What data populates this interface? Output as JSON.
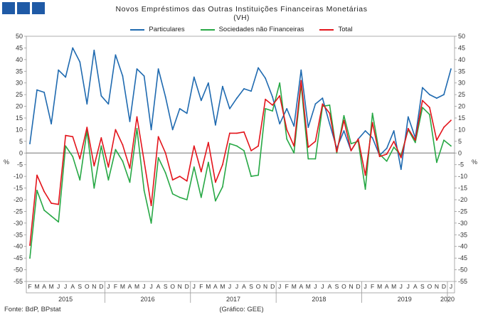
{
  "header": {
    "title": "Novos Empréstimos das Outras Instituições Financeiras Monetárias",
    "subtitle": "(VH)"
  },
  "footer": {
    "source": "Fonte: BdP, BPstat",
    "credit": "(Gráfico: GEE)"
  },
  "colors": {
    "particulares": "#1f6ab0",
    "sociedades": "#27a845",
    "total": "#e3141b",
    "logo": "#1f5aa6"
  },
  "chart_data": {
    "type": "line",
    "ylim": [
      -55,
      50
    ],
    "yticks": [
      50,
      45,
      40,
      35,
      30,
      25,
      20,
      15,
      10,
      5,
      0,
      -5,
      -10,
      -15,
      -20,
      -25,
      -30,
      -35,
      -40,
      -45,
      -50,
      -55
    ],
    "ylabel_left": "%",
    "ylabel_right": "%",
    "month_labels": [
      "F",
      "M",
      "A",
      "M",
      "J",
      "J",
      "A",
      "S",
      "O",
      "N",
      "D",
      "J",
      "F",
      "M",
      "A",
      "M",
      "J",
      "J",
      "A",
      "S",
      "O",
      "N",
      "D",
      "J",
      "F",
      "M",
      "A",
      "M",
      "J",
      "J",
      "A",
      "S",
      "O",
      "N",
      "D",
      "J",
      "F",
      "M",
      "A",
      "M",
      "J",
      "J",
      "A",
      "S",
      "O",
      "N",
      "D",
      "J",
      "F",
      "M",
      "A",
      "M",
      "J",
      "J",
      "A",
      "S",
      "O",
      "N",
      "D",
      "J"
    ],
    "years": [
      {
        "label": "2015",
        "start": 0,
        "end": 10
      },
      {
        "label": "2016",
        "start": 11,
        "end": 22
      },
      {
        "label": "2017",
        "start": 23,
        "end": 34
      },
      {
        "label": "2018",
        "start": 35,
        "end": 46
      },
      {
        "label": "2019",
        "start": 47,
        "end": 58
      },
      {
        "label": "2020",
        "start": 59,
        "end": 59
      }
    ],
    "series": [
      {
        "name": "Particulares",
        "color": "#1f6ab0",
        "values": [
          4,
          27,
          26,
          12.5,
          35.5,
          32.5,
          45,
          39,
          21,
          44,
          24.5,
          21,
          42,
          33,
          13.5,
          36,
          33,
          10,
          36,
          24,
          10,
          19,
          17,
          32.5,
          22.5,
          30,
          12,
          28.5,
          19,
          23.5,
          27.5,
          26.5,
          36.5,
          32,
          24,
          12.5,
          19,
          11.5,
          35.5,
          11,
          21,
          23.5,
          12.5,
          2,
          9.5,
          1,
          6,
          9.5,
          6.5,
          -1,
          2,
          9.5,
          -7,
          15.5,
          6.5,
          28,
          25,
          23.5,
          25,
          36
        ]
      },
      {
        "name": "Sociedades não Financeiras",
        "color": "#27a845",
        "values": [
          -45,
          -16,
          -24.5,
          -27,
          -29.5,
          3,
          -1.5,
          -11.5,
          9.5,
          -15,
          3,
          -11.5,
          1.5,
          -3.5,
          -12.5,
          10.5,
          -16,
          -30,
          -2,
          -8.5,
          -17.5,
          -19,
          -20,
          -6,
          -19,
          -4,
          -20.5,
          -14.5,
          4,
          3,
          1,
          -10,
          -9.5,
          19,
          18,
          30,
          6,
          0,
          29.5,
          -2.5,
          -2.5,
          20,
          20.5,
          0,
          16,
          4,
          5,
          -15.5,
          17,
          -0.5,
          -3.5,
          2.5,
          -1,
          10,
          4.5,
          19.5,
          16.5,
          -4,
          5.5,
          3
        ]
      },
      {
        "name": "Total",
        "color": "#e3141b",
        "values": [
          -39.5,
          -9.5,
          -16.5,
          -21.5,
          -22,
          7.5,
          7,
          -2.5,
          11,
          -5.5,
          6.5,
          -6,
          10,
          3.5,
          -6.5,
          15.5,
          -3.5,
          -22.5,
          7,
          0,
          -11.5,
          -10,
          -12,
          3,
          -8,
          4.5,
          -12.5,
          -5,
          8.5,
          8.5,
          9,
          1,
          3,
          23,
          20.5,
          24.5,
          10,
          3,
          31,
          2.5,
          5,
          21,
          17,
          0.5,
          14,
          1,
          6,
          -9.5,
          13,
          -1.5,
          -0.5,
          5,
          -2,
          10.5,
          5.5,
          22.5,
          19.5,
          5.5,
          11,
          14
        ]
      }
    ]
  }
}
